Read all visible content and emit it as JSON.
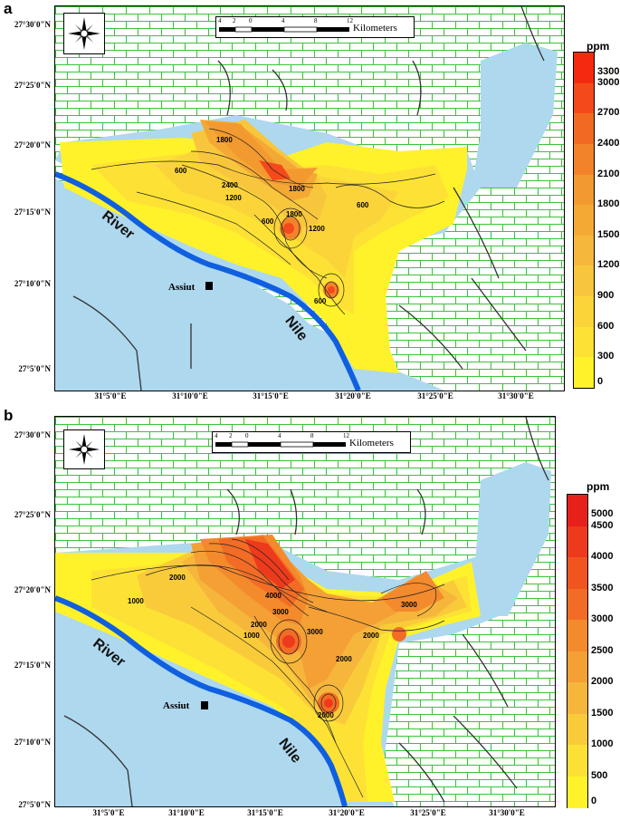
{
  "panels": [
    {
      "label": "a",
      "lat_labels": [
        "27°30'0\"N",
        "27°25'0\"N",
        "27°20'0\"N",
        "27°15'0\"N",
        "27°10'0\"N",
        "27°5'0\"N"
      ],
      "lon_labels": [
        "31°5'0\"E",
        "31°10'0\"E",
        "31°15'0\"E",
        "31°20'0\"E",
        "31°25'0\"E",
        "31°30'0\"E"
      ],
      "scale": {
        "ticks": [
          "4",
          "2",
          "0",
          "4",
          "8",
          "12"
        ],
        "unit": "Kilometers"
      },
      "legend": {
        "unit": "ppm",
        "ticks": [
          "3300",
          "3000",
          "2700",
          "2400",
          "2100",
          "1800",
          "1500",
          "1200",
          "900",
          "600",
          "300",
          "0"
        ],
        "colors": [
          "#f42a10",
          "#f4491a",
          "#f26a22",
          "#f3832a",
          "#f29a30",
          "#f5a935",
          "#f6b83c",
          "#f8c63c",
          "#fbd43a",
          "#fde235",
          "#fff22a"
        ]
      },
      "places": {
        "river_1": "River",
        "river_2": "Nile",
        "town": "Assiut"
      },
      "contour_labels": [
        "1800",
        "600",
        "2400",
        "1200",
        "1800",
        "1800",
        "600",
        "1200",
        "600",
        "600"
      ]
    },
    {
      "label": "b",
      "lat_labels": [
        "27°30'0\"N",
        "27°25'0\"N",
        "27°20'0\"N",
        "27°15'0\"N",
        "27°10'0\"N",
        "27°5'0\"N"
      ],
      "lon_labels": [
        "31°5'0\"E",
        "31°10'0\"E",
        "31°15'0\"E",
        "31°20'0\"E",
        "31°25'0\"E",
        "31°30'0\"E"
      ],
      "scale": {
        "ticks": [
          "4",
          "2",
          "0",
          "4",
          "8",
          "12"
        ],
        "unit": "Kilometers"
      },
      "legend": {
        "unit": "ppm",
        "ticks": [
          "5000",
          "4500",
          "4000",
          "3500",
          "3000",
          "2500",
          "2000",
          "1500",
          "1000",
          "500",
          "0"
        ],
        "colors": [
          "#e8201a",
          "#ee3a1c",
          "#f05520",
          "#f26c25",
          "#f38a2c",
          "#f4a035",
          "#f6b63c",
          "#f9cb3a",
          "#fce035",
          "#fff22a"
        ]
      },
      "places": {
        "river_1": "River",
        "river_2": "Nile",
        "town": "Assiut"
      },
      "contour_labels": [
        "2000",
        "1000",
        "4000",
        "3000",
        "2000",
        "1000",
        "3000",
        "2000",
        "3000",
        "2000",
        "2000"
      ]
    }
  ]
}
